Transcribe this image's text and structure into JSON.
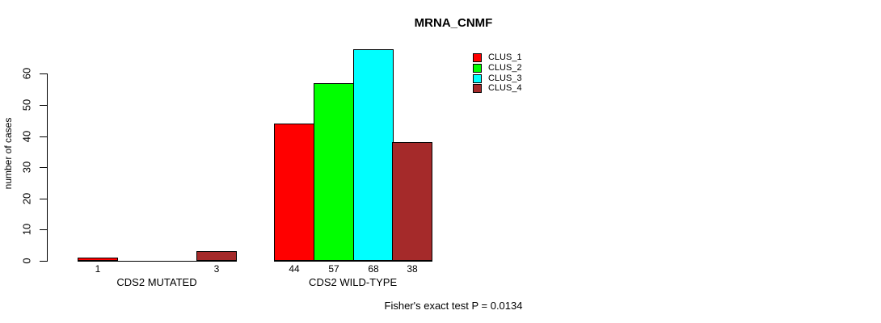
{
  "title": "MRNA_CNMF",
  "footer": "Fisher's exact test P = 0.0134",
  "chart_data": {
    "type": "bar",
    "title": "MRNA_CNMF",
    "ylabel": "number of cases",
    "xlabel": "",
    "categories": [
      "CDS2 MUTATED",
      "CDS2 WILD-TYPE"
    ],
    "series": [
      {
        "name": "CLUS_1",
        "color": "#FF0000",
        "values": [
          1,
          44
        ]
      },
      {
        "name": "CLUS_2",
        "color": "#00FF00",
        "values": [
          0,
          57
        ]
      },
      {
        "name": "CLUS_3",
        "color": "#00FFFF",
        "values": [
          0,
          68
        ]
      },
      {
        "name": "CLUS_4",
        "color": "#A52A2A",
        "values": [
          3,
          38
        ]
      }
    ],
    "yticks": [
      0,
      10,
      20,
      30,
      40,
      50,
      60
    ],
    "ylim": [
      0,
      68
    ],
    "grid": false,
    "legend_position": "top-right",
    "bar_value_labels": "shown under each nonzero bar",
    "annotation": "Fisher's exact test P = 0.0134"
  }
}
